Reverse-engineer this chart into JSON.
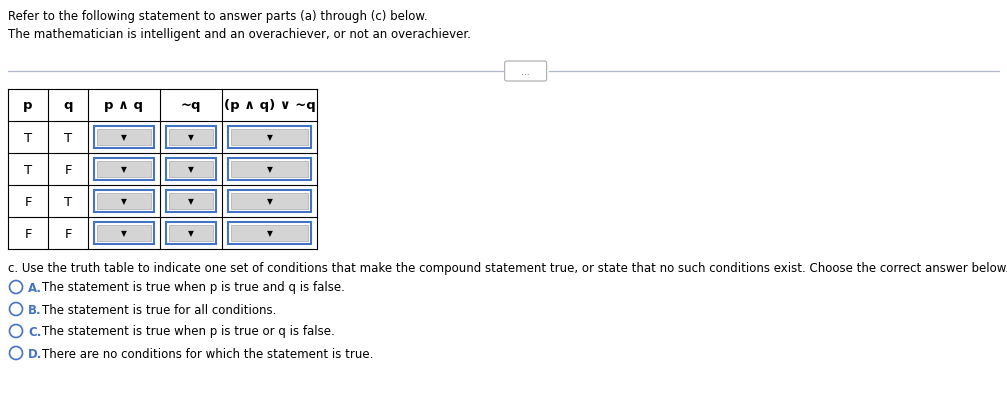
{
  "title_line1": "Refer to the following statement to answer parts (a) through (c) below.",
  "title_line2": "The mathematician is intelligent and an overachiever, or not an overachiever.",
  "table_headers": [
    "p",
    "q",
    "p ∧ q",
    "~q",
    "(p ∧ q) ∨ ~q"
  ],
  "table_rows": [
    [
      "T",
      "T"
    ],
    [
      "T",
      "F"
    ],
    [
      "F",
      "T"
    ],
    [
      "F",
      "F"
    ]
  ],
  "question_c": "c. Use the truth table to indicate one set of conditions that make the compound statement true, or state that no such conditions exist. Choose the correct answer below.",
  "options": [
    {
      "label": "A.",
      "text": "  The statement is true when p is true and q is false."
    },
    {
      "label": "B.",
      "text": "  The statement is true for all conditions."
    },
    {
      "label": "C.",
      "text": "  The statement is true when p is true or q is false."
    },
    {
      "label": "D.",
      "text": "  There are no conditions for which the statement is true."
    }
  ],
  "bg_color": "#ffffff",
  "dropdown_border_color": "#4472c4",
  "option_label_color": "#4472c4",
  "font_size_small": 8.5,
  "font_size_table": 9.5
}
